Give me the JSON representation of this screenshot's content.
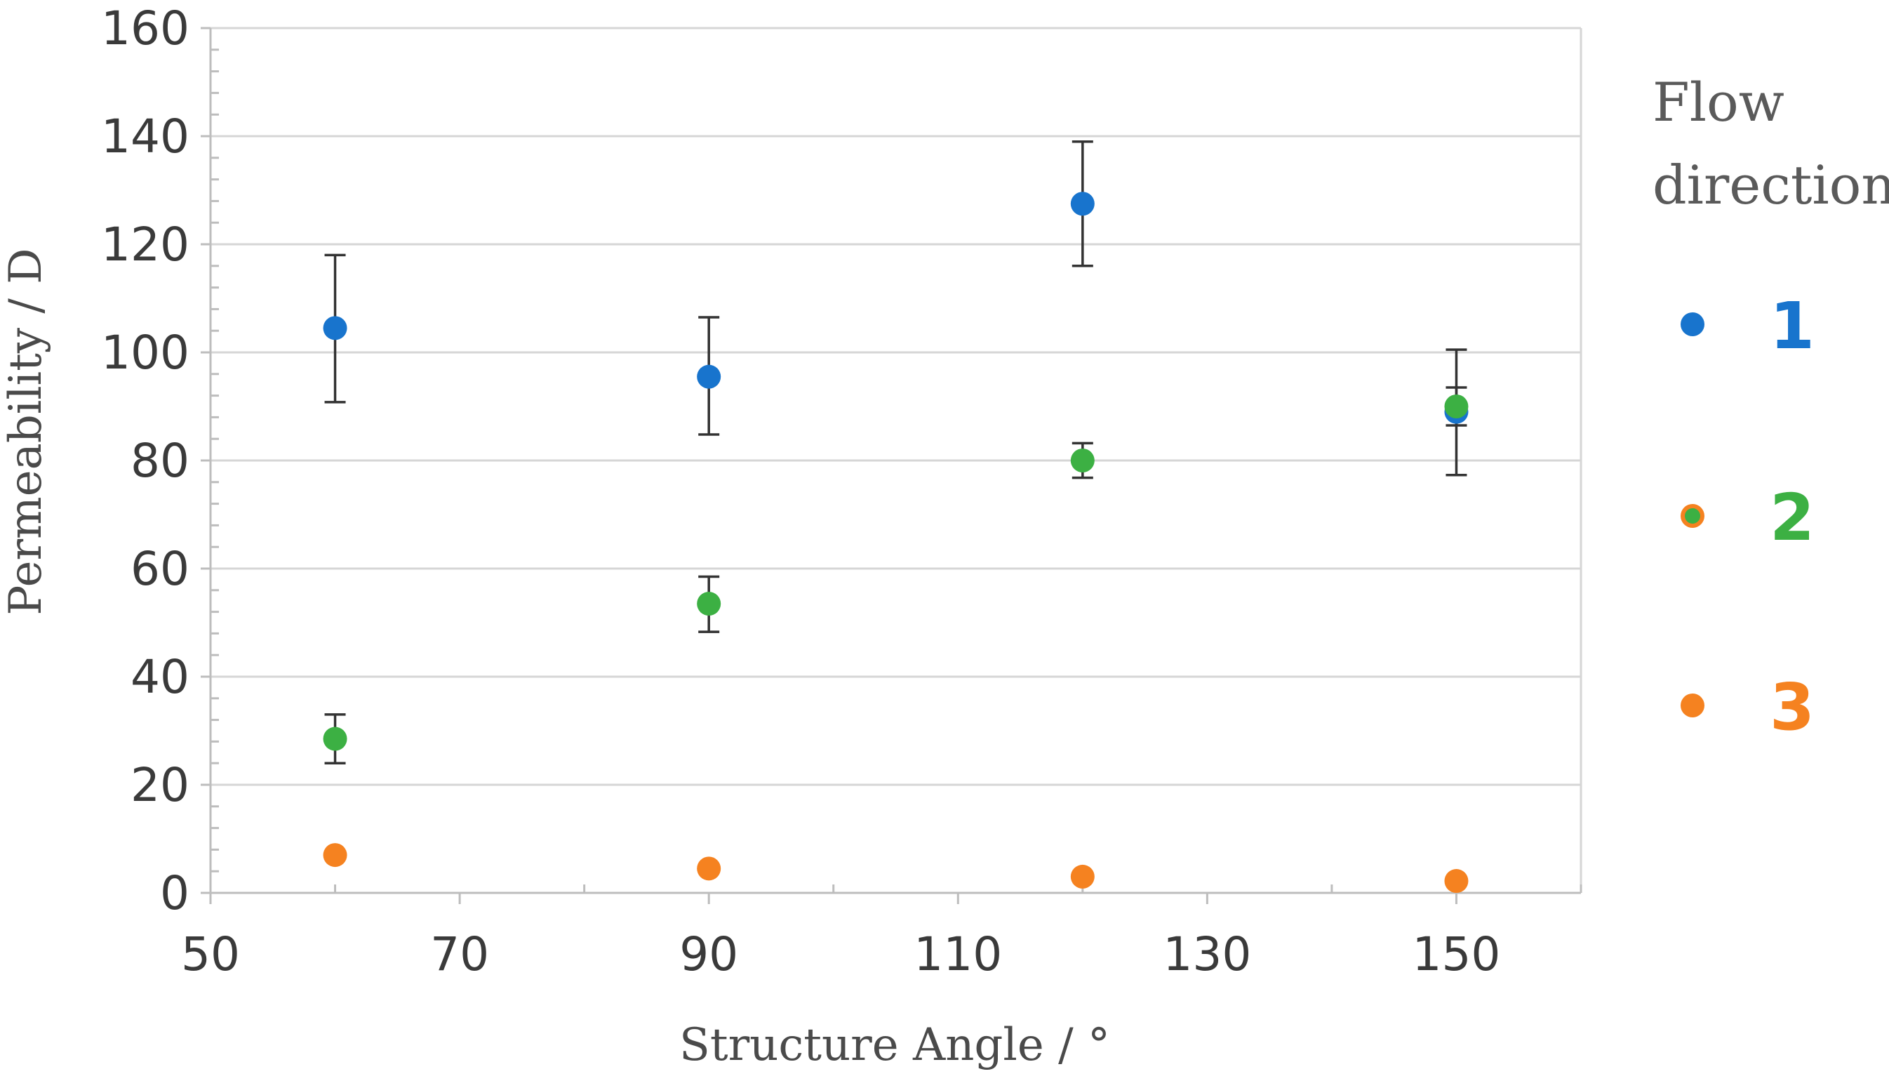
{
  "chart_data": {
    "type": "scatter",
    "title": "",
    "xlabel": "Structure Angle / °",
    "ylabel": "Permeability / D",
    "xlim": [
      50,
      160
    ],
    "ylim": [
      0,
      160
    ],
    "x_ticks": [
      50,
      70,
      90,
      110,
      130,
      150
    ],
    "y_ticks": [
      0,
      20,
      40,
      60,
      80,
      100,
      120,
      140,
      160
    ],
    "grid": "horizontal",
    "legend": {
      "title_lines": [
        "Flow",
        "direction"
      ],
      "placement": "right"
    },
    "series": [
      {
        "name": "1",
        "color": "#1874cd",
        "points": [
          {
            "x": 60,
            "y": 104.5,
            "err_low": 90.8,
            "err_high": 118
          },
          {
            "x": 90,
            "y": 95.5,
            "err_low": 84.8,
            "err_high": 106.5
          },
          {
            "x": 120,
            "y": 127.5,
            "err_low": 116,
            "err_high": 139
          },
          {
            "x": 150,
            "y": 89,
            "err_low": 77.3,
            "err_high": 100.5
          }
        ]
      },
      {
        "name": "2",
        "color": "#3cb043",
        "points": [
          {
            "x": 60,
            "y": 28.5,
            "err_low": 24,
            "err_high": 33
          },
          {
            "x": 90,
            "y": 53.5,
            "err_low": 48.3,
            "err_high": 58.5
          },
          {
            "x": 120,
            "y": 80,
            "err_low": 76.8,
            "err_high": 83.2
          },
          {
            "x": 150,
            "y": 90,
            "err_low": 86.5,
            "err_high": 93.5
          }
        ]
      },
      {
        "name": "3",
        "color": "#f58220",
        "points": [
          {
            "x": 60,
            "y": 7
          },
          {
            "x": 90,
            "y": 4.5
          },
          {
            "x": 120,
            "y": 3
          },
          {
            "x": 150,
            "y": 2.2
          }
        ]
      }
    ]
  }
}
